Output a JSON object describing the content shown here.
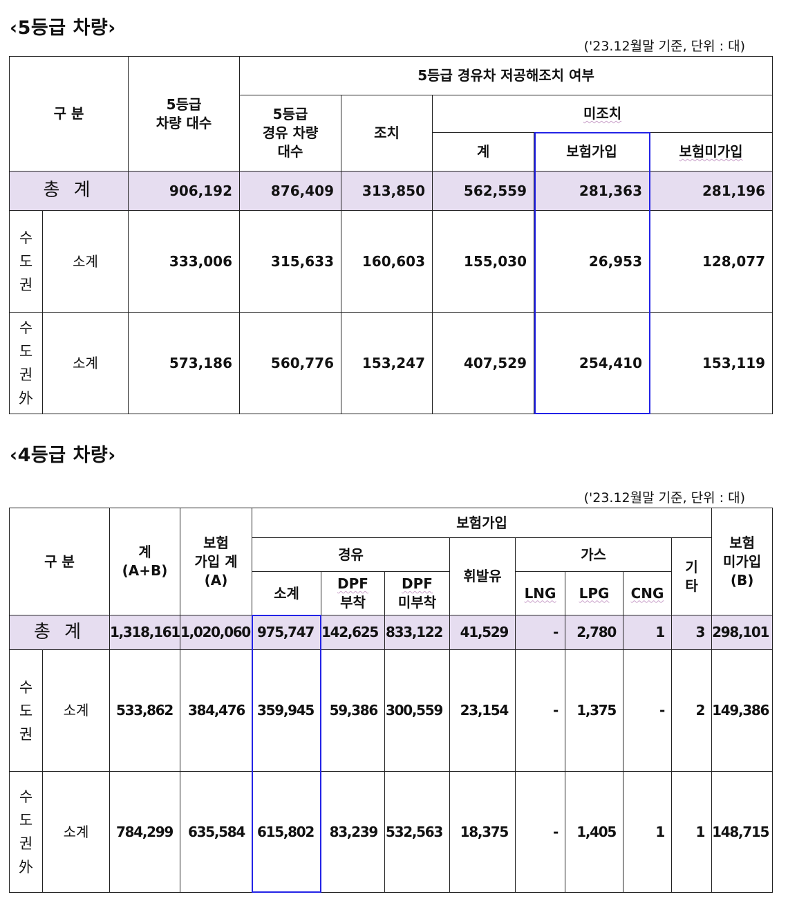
{
  "section5": {
    "title": "‹5등급 차량›",
    "note": "('23.12월말 기준, 단위 : 대)",
    "headers": {
      "category": "구 분",
      "vehicles_line1": "5등급",
      "vehicles_line2": "차량 대수",
      "group": "5등급 경유차 저공해조치 여부",
      "diesel_line1": "5등급",
      "diesel_line2": "경유 차량",
      "diesel_line3": "대수",
      "measure": "조치",
      "unmeasured": "미조치",
      "sum": "계",
      "insured": "보험가입",
      "uninsured": "보험미가입"
    },
    "total": {
      "label": "총 계",
      "values": [
        "906,192",
        "876,409",
        "313,850",
        "562,559",
        "281,363",
        "281,196"
      ]
    },
    "rows": [
      {
        "region_chars": [
          "수",
          "도",
          "권"
        ],
        "label": "소계",
        "values": [
          "333,006",
          "315,633",
          "160,603",
          "155,030",
          "26,953",
          "128,077"
        ]
      },
      {
        "region_chars": [
          "수",
          "도",
          "권",
          "外"
        ],
        "label": "소계",
        "values": [
          "573,186",
          "560,776",
          "153,247",
          "407,529",
          "254,410",
          "153,119"
        ]
      }
    ]
  },
  "section4": {
    "title": "‹4등급 차량›",
    "note": "('23.12월말 기준, 단위 : 대)",
    "headers": {
      "category": "구 분",
      "total_line1": "계",
      "total_line2": "(A+B)",
      "ins_total_line1": "보험",
      "ins_total_line2": "가입 계",
      "ins_total_line3": "(A)",
      "insured_group": "보험가입",
      "diesel": "경유",
      "subtotal": "소계",
      "dpf_on_line1": "DPF",
      "dpf_on_line2": "부착",
      "dpf_off_line1": "DPF",
      "dpf_off_line2": "미부착",
      "gasoline": "휘발유",
      "gas": "가스",
      "lng": "LNG",
      "lpg": "LPG",
      "cng": "CNG",
      "etc_line1": "기",
      "etc_line2": "타",
      "uninsured_line1": "보험",
      "uninsured_line2": "미가입",
      "uninsured_line3": "(B)"
    },
    "total": {
      "label": "총 계",
      "values": [
        "1,318,161",
        "1,020,060",
        "975,747",
        "142,625",
        "833,122",
        "41,529",
        "-",
        "2,780",
        "1",
        "3",
        "298,101"
      ]
    },
    "rows": [
      {
        "region_chars": [
          "수",
          "도",
          "권"
        ],
        "label": "소계",
        "values": [
          "533,862",
          "384,476",
          "359,945",
          "59,386",
          "300,559",
          "23,154",
          "-",
          "1,375",
          "-",
          "2",
          "149,386"
        ]
      },
      {
        "region_chars": [
          "수",
          "도",
          "권",
          "外"
        ],
        "label": "소계",
        "values": [
          "784,299",
          "635,584",
          "615,802",
          "83,239",
          "532,563",
          "18,375",
          "-",
          "1,405",
          "1",
          "1",
          "148,715"
        ]
      }
    ]
  },
  "colors": {
    "highlight": "#2323e6",
    "total_row_bg": "#e6ddf0"
  }
}
